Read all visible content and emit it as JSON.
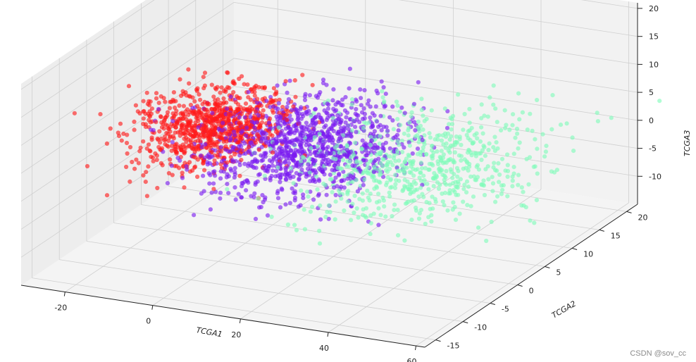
{
  "watermark": "CSDN @sov_cc",
  "chart_data": {
    "type": "scatter",
    "projection": "3d",
    "title": "",
    "xlabel": "TCGA1",
    "ylabel": "TCGA2",
    "zlabel": "TCGA3",
    "xlim": [
      -30,
      62
    ],
    "ylim": [
      -17,
      22
    ],
    "zlim": [
      -15,
      21
    ],
    "xticks": [
      "-20",
      "0",
      "20",
      "40",
      "60"
    ],
    "yticks": [
      "-15",
      "-10",
      "-5",
      "0",
      "5",
      "10",
      "15",
      "20"
    ],
    "zticks": [
      "-10",
      "-5",
      "0",
      "5",
      "10",
      "15",
      "20"
    ],
    "grid": true,
    "legend": "none",
    "series": [
      {
        "color": "#ff1a1a",
        "approx_points": 900,
        "x_center": -15,
        "x_spread": 7,
        "y_center": 6,
        "y_spread": 4,
        "z_center": 0,
        "z_spread": 2.5
      },
      {
        "color": "#7a1cf0",
        "approx_points": 1100,
        "x_center": 6,
        "x_spread": 10,
        "y_center": 6,
        "y_spread": 5,
        "z_center": -1,
        "z_spread": 3
      },
      {
        "color": "#7ffcb9",
        "approx_points": 700,
        "x_center": 32,
        "x_spread": 12,
        "y_center": 6,
        "y_spread": 6,
        "z_center": -1,
        "z_spread": 3
      }
    ]
  }
}
